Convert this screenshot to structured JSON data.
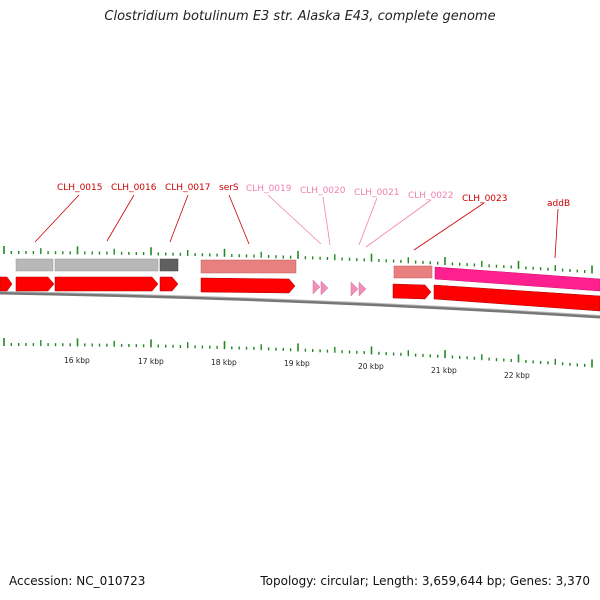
{
  "header": {
    "title": "Clostridium botulinum E3 str. Alaska E43, complete genome"
  },
  "footer": {
    "accession": "Accession: NC_010723",
    "summary": "Topology: circular; Length: 3,659,644 bp; Genes: 3,370"
  },
  "colors": {
    "forward_cds": "#ff0000",
    "trna_like": "#f090b8",
    "gene_grey": "#b8b8b8",
    "gene_dark": "#606060",
    "gene_salmon": "#e88080",
    "gene_magenta": "#ff2090",
    "backbone": "#888888",
    "tick": "#228822",
    "label_dark": "#cc0000",
    "label_light": "#f080b0"
  },
  "scale": {
    "ticks": [
      {
        "label": "16 kbp"
      },
      {
        "label": "17 kbp"
      },
      {
        "label": "18 kbp"
      },
      {
        "label": "19 kbp"
      },
      {
        "label": "20 kbp"
      },
      {
        "label": "21 kbp"
      },
      {
        "label": "22 kbp"
      }
    ]
  },
  "genes": [
    {
      "id": "g15",
      "label": "CLH_0015",
      "style": "dark"
    },
    {
      "id": "g16",
      "label": "CLH_0016",
      "style": "dark"
    },
    {
      "id": "g17",
      "label": "CLH_0017",
      "style": "dark"
    },
    {
      "id": "g18",
      "label": "serS",
      "style": "dark"
    },
    {
      "id": "g19",
      "label": "CLH_0019",
      "style": "light"
    },
    {
      "id": "g20",
      "label": "CLH_0020",
      "style": "light"
    },
    {
      "id": "g21",
      "label": "CLH_0021",
      "style": "light"
    },
    {
      "id": "g22",
      "label": "CLH_0022",
      "style": "light"
    },
    {
      "id": "g23",
      "label": "CLH_0023",
      "style": "dark"
    },
    {
      "id": "gaddB",
      "label": "addB",
      "style": "dark"
    }
  ]
}
